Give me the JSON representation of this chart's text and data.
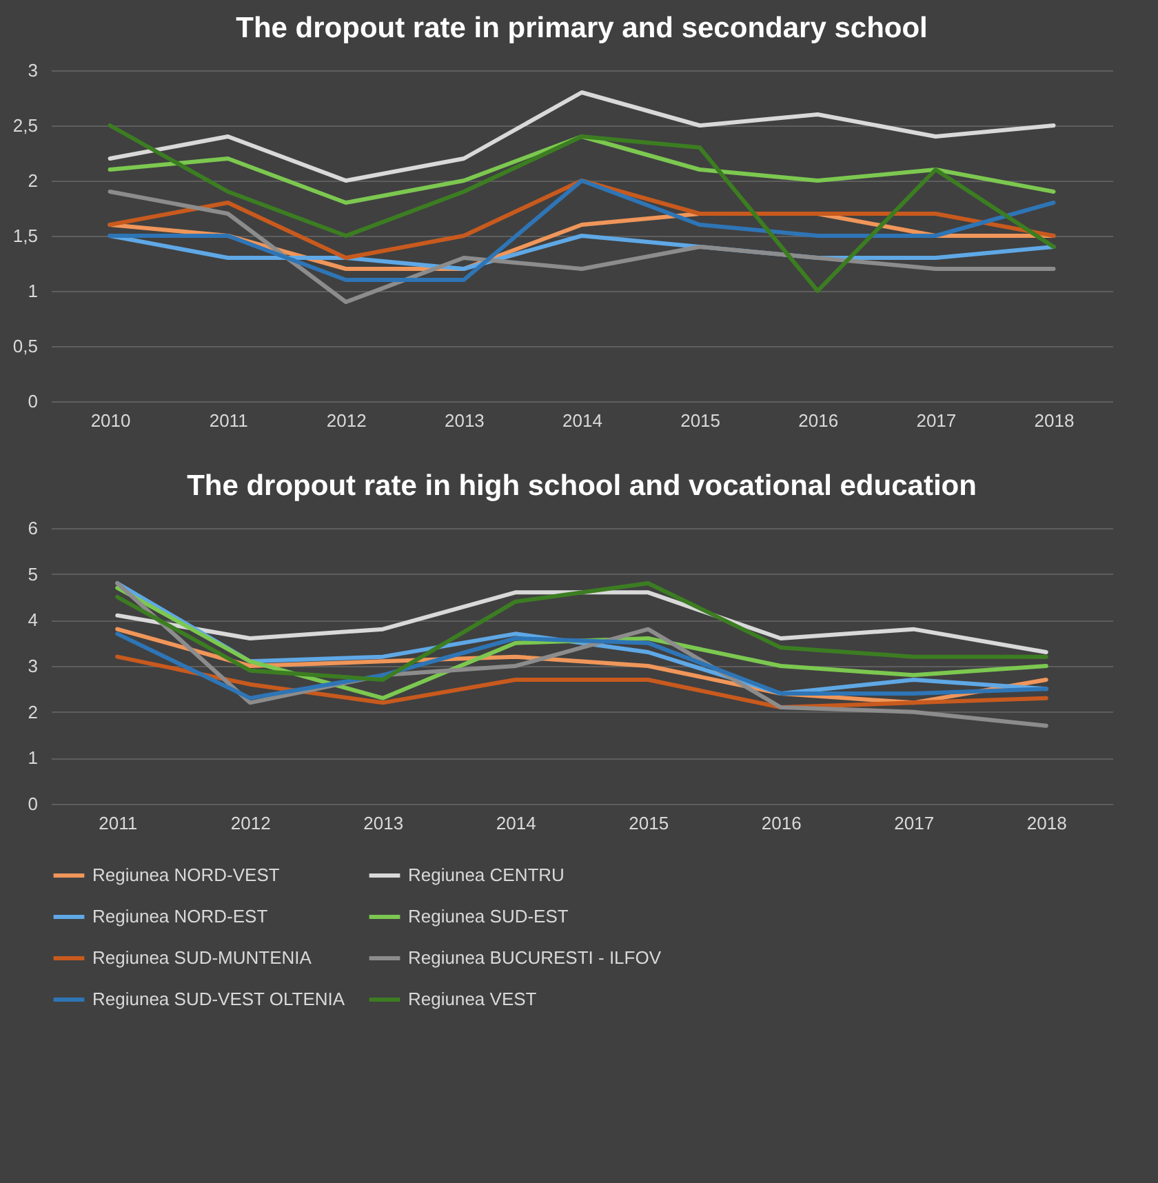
{
  "chart_data": [
    {
      "type": "line",
      "title": "The dropout rate in primary and secondary school",
      "categories": [
        "2010",
        "2011",
        "2012",
        "2013",
        "2014",
        "2015",
        "2016",
        "2017",
        "2018"
      ],
      "ylim": [
        0,
        3
      ],
      "yticks": [
        0,
        {
          "value": 0.5,
          "label": "0,5"
        },
        1,
        {
          "value": 1.5,
          "label": "1,5"
        },
        2,
        {
          "value": 2.5,
          "label": "2,5"
        },
        3
      ],
      "grid": "y",
      "legend": "bottom",
      "marker": "none",
      "line_style": "solid",
      "series": [
        {
          "name": "Regiunea NORD-VEST",
          "color": "#f0965a",
          "values": [
            1.6,
            1.5,
            1.2,
            1.2,
            1.6,
            1.7,
            1.7,
            1.5,
            1.5
          ]
        },
        {
          "name": "Regiunea CENTRU",
          "color": "#d9d9d9",
          "values": [
            2.2,
            2.4,
            2.0,
            2.2,
            2.8,
            2.5,
            2.6,
            2.4,
            2.5
          ]
        },
        {
          "name": "Regiunea NORD-EST",
          "color": "#5fa8e6",
          "values": [
            1.5,
            1.3,
            1.3,
            1.2,
            1.5,
            1.4,
            1.3,
            1.3,
            1.4
          ]
        },
        {
          "name": "Regiunea SUD-EST",
          "color": "#7cc850",
          "values": [
            2.1,
            2.2,
            1.8,
            2.0,
            2.4,
            2.1,
            2.0,
            2.1,
            1.9
          ]
        },
        {
          "name": "Regiunea SUD-MUNTENIA",
          "color": "#c85a1e",
          "values": [
            1.6,
            1.8,
            1.3,
            1.5,
            2.0,
            1.7,
            1.7,
            1.7,
            1.5
          ]
        },
        {
          "name": "Regiunea BUCURESTI - ILFOV",
          "color": "#8c8c8c",
          "values": [
            1.9,
            1.7,
            0.9,
            1.3,
            1.2,
            1.4,
            1.3,
            1.2,
            1.2
          ]
        },
        {
          "name": "Regiunea SUD-VEST OLTENIA",
          "color": "#2e75b6",
          "values": [
            1.5,
            1.5,
            1.1,
            1.1,
            2.0,
            1.6,
            1.5,
            1.5,
            1.8
          ]
        },
        {
          "name": "Regiunea VEST",
          "color": "#3c7d22",
          "values": [
            2.5,
            1.9,
            1.5,
            1.9,
            2.4,
            2.3,
            1.0,
            2.1,
            1.4
          ]
        }
      ]
    },
    {
      "type": "line",
      "title": "The dropout rate in high school and vocational education",
      "categories": [
        "2011",
        "2012",
        "2013",
        "2014",
        "2015",
        "2016",
        "2017",
        "2018"
      ],
      "ylim": [
        0,
        6
      ],
      "yticks": [
        0,
        1,
        2,
        3,
        4,
        5,
        6
      ],
      "grid": "y",
      "legend": "bottom",
      "marker": "none",
      "line_style": "solid",
      "series": [
        {
          "name": "Regiunea NORD-VEST",
          "color": "#f0965a",
          "values": [
            3.8,
            3.0,
            3.1,
            3.2,
            3.0,
            2.4,
            2.2,
            2.7
          ]
        },
        {
          "name": "Regiunea CENTRU",
          "color": "#d9d9d9",
          "values": [
            4.1,
            3.6,
            3.8,
            4.6,
            4.6,
            3.6,
            3.8,
            3.3
          ]
        },
        {
          "name": "Regiunea NORD-EST",
          "color": "#5fa8e6",
          "values": [
            4.8,
            3.1,
            3.2,
            3.7,
            3.3,
            2.4,
            2.7,
            2.5
          ]
        },
        {
          "name": "Regiunea SUD-EST",
          "color": "#7cc850",
          "values": [
            4.7,
            3.1,
            2.3,
            3.5,
            3.6,
            3.0,
            2.8,
            3.0
          ]
        },
        {
          "name": "Regiunea SUD-MUNTENIA",
          "color": "#c85a1e",
          "values": [
            3.2,
            2.6,
            2.2,
            2.7,
            2.7,
            2.1,
            2.2,
            2.3
          ]
        },
        {
          "name": "Regiunea BUCURESTI - ILFOV",
          "color": "#8c8c8c",
          "values": [
            4.8,
            2.2,
            2.8,
            3.0,
            3.8,
            2.1,
            2.0,
            1.7
          ]
        },
        {
          "name": "Regiunea SUD-VEST OLTENIA",
          "color": "#2e75b6",
          "values": [
            3.7,
            2.3,
            2.8,
            3.6,
            3.5,
            2.4,
            2.4,
            2.5
          ]
        },
        {
          "name": "Regiunea VEST",
          "color": "#3c7d22",
          "values": [
            4.5,
            2.9,
            2.7,
            4.4,
            4.8,
            3.4,
            3.2,
            3.2
          ]
        }
      ]
    }
  ]
}
